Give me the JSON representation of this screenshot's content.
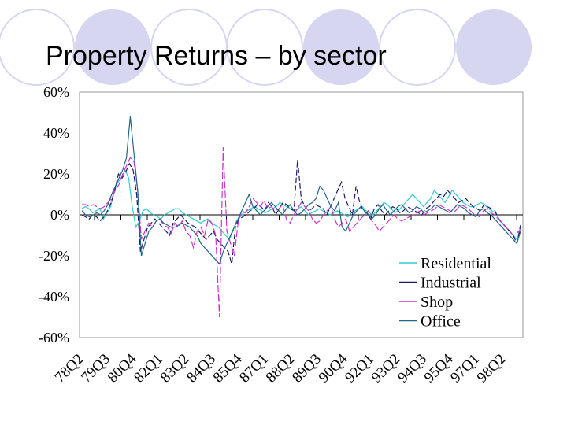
{
  "slide": {
    "title": "Property Returns – by sector"
  },
  "chart_data": {
    "type": "line",
    "title": "Property Returns – by sector",
    "xlabel": "",
    "ylabel": "",
    "ylim": [
      -60,
      60
    ],
    "y_ticks": [
      "60%",
      "40%",
      "20%",
      "0%",
      "-20%",
      "-40%",
      "-60%"
    ],
    "y_tick_values": [
      60,
      40,
      20,
      0,
      -20,
      -40,
      -60
    ],
    "x_tick_labels": [
      "78Q2",
      "79Q3",
      "80Q4",
      "82Q1",
      "83Q2",
      "84Q3",
      "85Q4",
      "87Q1",
      "88Q2",
      "89Q3",
      "90Q4",
      "92Q1",
      "93Q2",
      "94Q3",
      "95Q4",
      "97Q1",
      "98Q2"
    ],
    "legend_position": "bottom-right",
    "grid": false,
    "series": [
      {
        "name": "Residential",
        "color": "#33CCCC",
        "values": [
          3,
          4,
          3,
          1,
          2,
          3,
          -2,
          1,
          4,
          12,
          16,
          18,
          22,
          18,
          4,
          -6,
          -3,
          2,
          3,
          1,
          0,
          -1,
          -2,
          0,
          1,
          2,
          3,
          3,
          1,
          0,
          -1,
          -2,
          -3,
          -4,
          -3,
          -2,
          -4,
          -5,
          -6,
          -8,
          -10,
          -12,
          -8,
          -3,
          -1,
          1,
          2,
          3,
          4,
          3,
          2,
          1,
          2,
          3,
          4,
          6,
          5,
          4,
          3,
          2,
          3,
          4,
          2,
          0,
          1,
          2,
          3,
          2,
          1,
          0,
          1,
          2,
          1,
          0,
          -1,
          1,
          2,
          3,
          4,
          2,
          1,
          0,
          2,
          4,
          6,
          5,
          3,
          1,
          2,
          4,
          6,
          8,
          10,
          8,
          6,
          4,
          6,
          8,
          12,
          10,
          8,
          6,
          9,
          12,
          10,
          8,
          6,
          5,
          4,
          4,
          5,
          6,
          5,
          3,
          2,
          1,
          -2,
          -4,
          -6,
          -8,
          -10,
          -12,
          -8
        ]
      },
      {
        "name": "Industrial",
        "color": "#1A1A66",
        "values": [
          0,
          -1,
          -2,
          0,
          -1,
          -3,
          -1,
          2,
          6,
          12,
          20,
          18,
          21,
          25,
          22,
          10,
          -18,
          -12,
          -6,
          -4,
          -2,
          -4,
          -6,
          -8,
          -10,
          -4,
          -2,
          0,
          -2,
          -4,
          -5,
          -6,
          -8,
          -10,
          -12,
          -10,
          -8,
          -12,
          -14,
          -16,
          -18,
          -24,
          -6,
          -2,
          -1,
          0,
          2,
          3,
          5,
          4,
          2,
          6,
          4,
          0,
          3,
          6,
          5,
          3,
          2,
          27,
          8,
          4,
          2,
          3,
          5,
          4,
          3,
          0,
          4,
          8,
          12,
          16,
          8,
          4,
          0,
          14,
          6,
          2,
          1,
          -2,
          3,
          5,
          2,
          0,
          2,
          4,
          3,
          1,
          2,
          4,
          3,
          2,
          1,
          0,
          3,
          4,
          6,
          8,
          10,
          9,
          12,
          10,
          8,
          6,
          7,
          8,
          6,
          4,
          3,
          2,
          5,
          4,
          3,
          2,
          -2,
          -4,
          -6,
          -8,
          -10,
          -14,
          -5
        ]
      },
      {
        "name": "Shop",
        "color": "#CC33CC",
        "values": [
          5,
          5,
          4,
          5,
          4,
          3,
          4,
          6,
          8,
          12,
          15,
          20,
          24,
          28,
          26,
          12,
          -12,
          -8,
          -4,
          -6,
          -3,
          -2,
          -5,
          -6,
          -9,
          -4,
          -6,
          -3,
          -8,
          -10,
          -16,
          -8,
          -6,
          -10,
          -2,
          -4,
          -10,
          -50,
          33,
          -8,
          -14,
          -20,
          -4,
          2,
          1,
          4,
          8,
          6,
          4,
          7,
          3,
          4,
          2,
          3,
          5,
          -2,
          -4,
          0,
          3,
          6,
          4,
          2,
          -2,
          -4,
          -3,
          0,
          2,
          4,
          -2,
          -6,
          -4,
          -2,
          -8,
          -6,
          -4,
          -2,
          0,
          2,
          -3,
          -5,
          -8,
          -6,
          -4,
          -2,
          0,
          -2,
          -3,
          -2,
          -1,
          0,
          1,
          2,
          0,
          1,
          2,
          3,
          5,
          4,
          3,
          2,
          1,
          3,
          5,
          4,
          3,
          1,
          0,
          -1,
          2,
          3,
          1,
          0,
          -2,
          -4,
          -6,
          -8,
          -10,
          -9,
          -7
        ]
      },
      {
        "name": "Office",
        "color": "#226688",
        "values": [
          2,
          0,
          -1,
          0,
          1,
          0,
          2,
          5,
          10,
          14,
          18,
          22,
          28,
          48,
          30,
          12,
          -20,
          -14,
          -8,
          -6,
          -3,
          -2,
          -4,
          -5,
          -6,
          -6,
          -5,
          -4,
          -5,
          -6,
          -8,
          -10,
          -14,
          -16,
          -18,
          -20,
          -22,
          -24,
          -18,
          -14,
          -10,
          -6,
          -2,
          2,
          6,
          10,
          4,
          2,
          0,
          2,
          4,
          6,
          4,
          2,
          0,
          3,
          5,
          2,
          0,
          1,
          3,
          5,
          6,
          8,
          14,
          12,
          8,
          4,
          2,
          6,
          -6,
          -8,
          -4,
          0,
          2,
          4,
          2,
          0,
          -2,
          0,
          3,
          5,
          2,
          0,
          2,
          4,
          5,
          3,
          1,
          2,
          4,
          3,
          1,
          2,
          3,
          5,
          4,
          3,
          2,
          1,
          3,
          5,
          4,
          3,
          1,
          0,
          -1,
          2,
          3,
          1,
          0,
          -2,
          -4,
          -6,
          -8,
          -10,
          -12,
          -14,
          -8
        ]
      }
    ]
  }
}
